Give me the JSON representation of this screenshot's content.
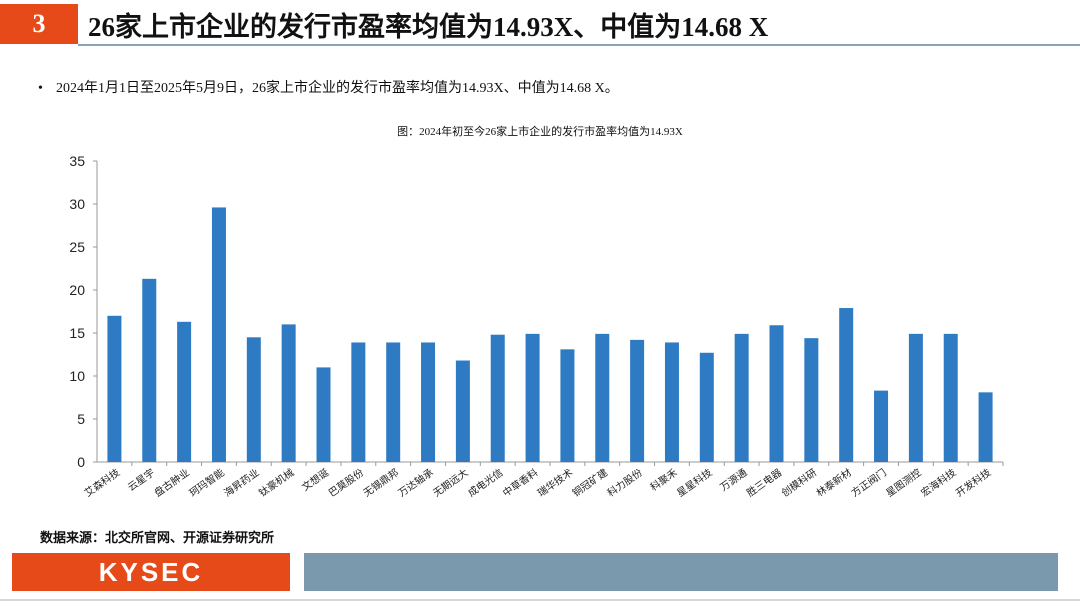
{
  "header": {
    "slide_number": "3",
    "title": "26家上市企业的发行市盈率均值为14.93X、中值为14.68 X"
  },
  "bullet": "2024年1月1日至2025年5月9日，26家上市企业的发行市盈率均值为14.93X、中值为14.68 X。",
  "source": "数据来源：北交所官网、开源证券研究所",
  "footer": {
    "logo_text": "KYSEC"
  },
  "colors": {
    "accent": "#e64a19",
    "bar": "#2e7bc4",
    "footer_band": "#7a99ad"
  },
  "chart_data": {
    "type": "bar",
    "title": "图：2024年初至今26家上市企业的发行市盈率均值为14.93X",
    "categories": [
      "艾森科技",
      "云星宇",
      "盘古肿业",
      "珂玛智能",
      "海昇药业",
      "钛豪机械",
      "文想诞",
      "巴莫股份",
      "无锡鼎邦",
      "万达轴承",
      "无期远大",
      "成电光信",
      "中草香料",
      "瑞华技术",
      "铜冠矿建",
      "科力股份",
      "科聚禾",
      "星星科技",
      "万源通",
      "胜三电器",
      "创模科研",
      "林泰新材",
      "方正阀门",
      "星图测控",
      "宏海科技",
      "开发科技"
    ],
    "values": [
      17.0,
      21.3,
      16.3,
      29.6,
      14.5,
      16.0,
      11.0,
      13.9,
      13.9,
      13.9,
      11.8,
      14.8,
      14.9,
      13.1,
      14.9,
      14.2,
      13.9,
      12.7,
      14.9,
      15.9,
      14.4,
      17.9,
      8.3,
      14.9,
      14.9,
      8.1
    ],
    "ylim": [
      0,
      35
    ],
    "yticks": [
      0,
      5,
      10,
      15,
      20,
      25,
      30,
      35
    ],
    "grid": false,
    "legend": "none"
  }
}
